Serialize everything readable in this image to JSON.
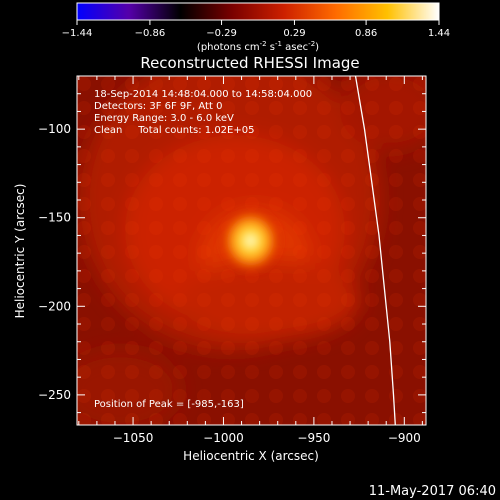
{
  "colorbar": {
    "ticks": [
      "-1.44",
      "-0.86",
      "-0.29",
      "0.29",
      "0.86",
      "1.44"
    ],
    "unit_main": "(photons cm",
    "unit_sup1": "-2",
    "unit_mid1": " s",
    "unit_sup2": "-1",
    "unit_mid2": " asec",
    "unit_sup3": "-2",
    "unit_end": ")",
    "range": [
      -1.44,
      1.44
    ],
    "palette": [
      "#0000ff",
      "#5500aa",
      "#000000",
      "#7a0000",
      "#cc2000",
      "#ff6a00",
      "#ffc000",
      "#ffffff"
    ]
  },
  "chart_data": {
    "type": "heatmap",
    "title": "Reconstructed RHESSI Image",
    "xlabel": "Heliocentric X (arcsec)",
    "ylabel": "Heliocentric Y (arcsec)",
    "xlim": [
      -1081,
      -888
    ],
    "ylim": [
      -267,
      -70
    ],
    "x_ticks": [
      -1050,
      -1000,
      -950,
      -900
    ],
    "x_tick_labels": [
      "−1050",
      "−1000",
      "−950",
      "−900"
    ],
    "y_ticks": [
      -100,
      -150,
      -200,
      -250
    ],
    "y_tick_labels": [
      "−100",
      "−150",
      "−200",
      "−250"
    ],
    "peak": {
      "x": -985,
      "y": -163
    },
    "limb_curve": [
      [
        -927,
        -70
      ],
      [
        -922,
        -100
      ],
      [
        -918,
        -130
      ],
      [
        -914,
        -160
      ],
      [
        -911,
        -190
      ],
      [
        -908,
        -220
      ],
      [
        -906,
        -250
      ],
      [
        -905,
        -267
      ]
    ],
    "annotations": [
      "18-Sep-2014 14:48:04.000 to 14:58:04.000",
      "Detectors: 3F 6F 9F, Att 0",
      "Energy Range: 3.0 - 6.0 keV",
      "Clean     Total counts: 1.02E+05"
    ],
    "peak_label": "Position of Peak = [-985,-163]"
  },
  "footer": {
    "date": "11-May-2017 06:40"
  }
}
